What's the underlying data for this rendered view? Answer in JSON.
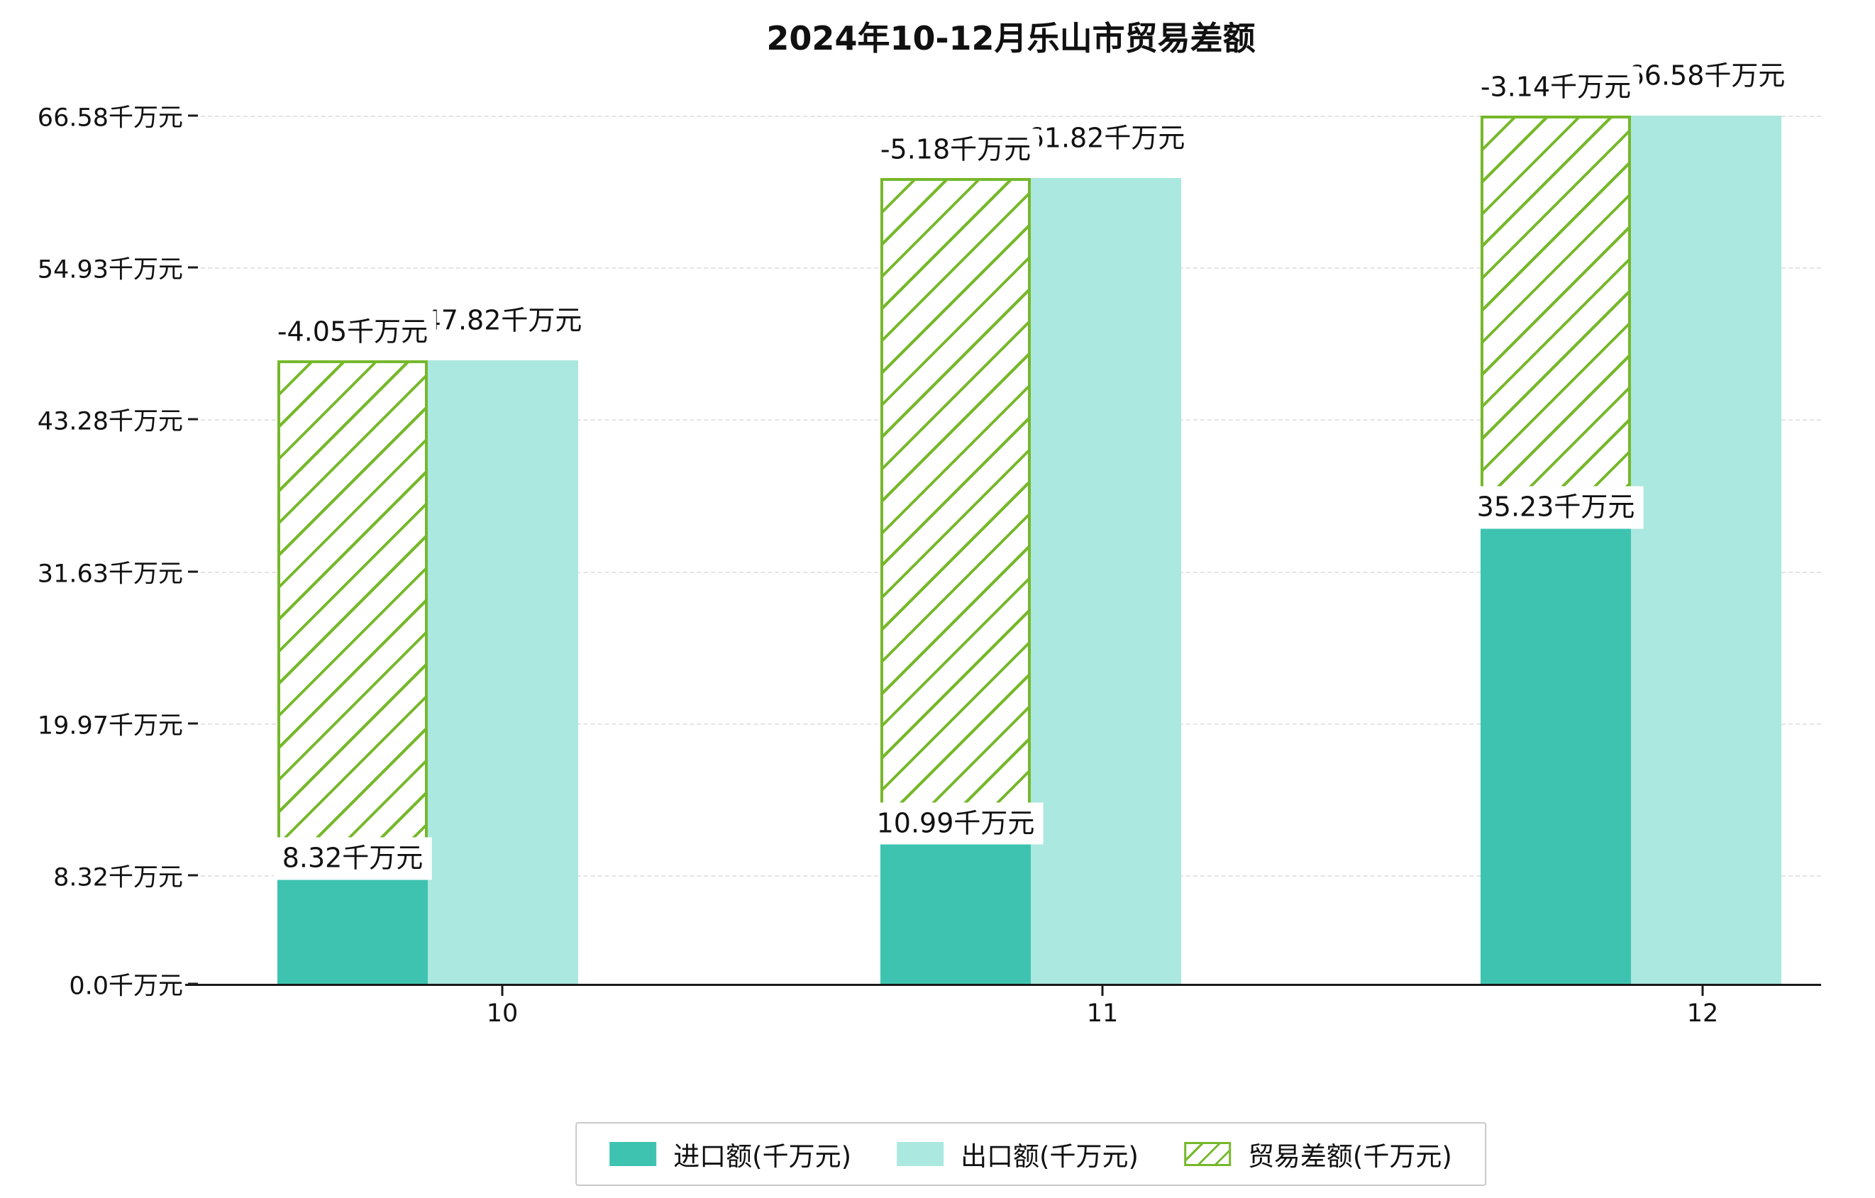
{
  "title": "2024年10-12月乐山市贸易差额",
  "colors": {
    "import": "#3ec3b0",
    "export": "#abe8df",
    "balance": "#76b82b",
    "grid": "#e4e4e4",
    "axis": "#1a1a1a",
    "label_bg": "#ffffff",
    "text": "#111111",
    "legend_border": "#c9c9c9"
  },
  "y_axis": {
    "tick_labels": [
      "0.0千万元",
      "8.32千万元",
      "19.97千万元",
      "31.63千万元",
      "43.28千万元",
      "54.93千万元",
      "66.58千万元"
    ],
    "tick_values": [
      0.0,
      8.32,
      19.97,
      31.63,
      43.28,
      54.93,
      66.58
    ]
  },
  "x_axis": {
    "tick_labels": [
      "10",
      "11",
      "12"
    ]
  },
  "legend": {
    "items": [
      {
        "label": "进口额(千万元)",
        "key": "import"
      },
      {
        "label": "出口额(千万元)",
        "key": "export"
      },
      {
        "label": "贸易差额(千万元)",
        "key": "balance"
      }
    ]
  },
  "chart_data": {
    "type": "bar",
    "title": "2024年10-12月乐山市贸易差额",
    "categories": [
      "10",
      "11",
      "12"
    ],
    "series": [
      {
        "name": "进口额(千万元)",
        "type": "bar",
        "color": "#3ec3b0",
        "values": [
          8.32,
          10.99,
          35.23
        ],
        "data_labels": [
          "8.32千万元",
          "10.99千万元",
          "35.23千万元"
        ]
      },
      {
        "name": "出口额(千万元)",
        "type": "bar",
        "color": "#abe8df",
        "values": [
          47.82,
          61.82,
          66.58
        ],
        "data_labels": [
          "47.82千万元",
          "61.82千万元",
          "66.58千万元"
        ]
      },
      {
        "name": "贸易差额(千万元)",
        "type": "floating-bar-hatched",
        "color": "#76b82b",
        "values": [
          -4.05,
          -5.18,
          -3.14
        ],
        "data_labels": [
          "-4.05千万元",
          "-5.18千万元",
          "-3.14千万元"
        ],
        "span_from_series": "进口额(千万元)",
        "span_to_series": "出口额(千万元)"
      }
    ],
    "xlabel": "",
    "ylabel": "",
    "ylim": [
      0,
      66.58
    ],
    "grid": "horizontal-dashed",
    "legend_position": "bottom-center"
  }
}
